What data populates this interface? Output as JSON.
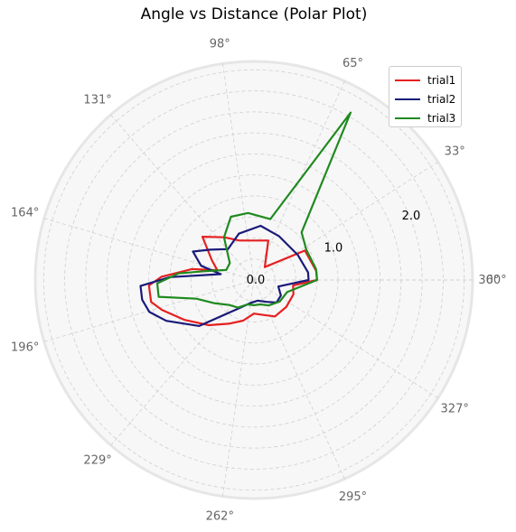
{
  "chart_data": {
    "type": "line",
    "subtype": "polar",
    "title": "Angle vs Distance (Polar Plot)",
    "angle_unit": "degrees",
    "angle_ticks": [
      "0°",
      "33°",
      "65°",
      "98°",
      "131°",
      "164°",
      "196°",
      "229°",
      "262°",
      "295°",
      "327°",
      "360°"
    ],
    "angle_tick_values": [
      0,
      32.7,
      65.5,
      98.2,
      130.9,
      163.6,
      196.4,
      229.1,
      261.8,
      294.5,
      327.3,
      360
    ],
    "radial_ticks": [
      "0.0",
      "1.0",
      "2.0"
    ],
    "radial_tick_values": [
      0,
      1,
      2
    ],
    "radial_gridlines": [
      0.25,
      0.5,
      0.75,
      1.0,
      1.25,
      1.5,
      1.75,
      2.0,
      2.25,
      2.5
    ],
    "rlim": [
      0,
      2.6
    ],
    "grid": true,
    "legend_position": "top-right",
    "series": [
      {
        "name": "trial1",
        "color": "#e62020",
        "points": [
          [
            0,
            0.75
          ],
          [
            8,
            0.75
          ],
          [
            30,
            0.7
          ],
          [
            50,
            0.2
          ],
          [
            70,
            0.5
          ],
          [
            90,
            0.47
          ],
          [
            110,
            0.5
          ],
          [
            125,
            0.62
          ],
          [
            140,
            0.8
          ],
          [
            155,
            0.55
          ],
          [
            165,
            0.45
          ],
          [
            170,
            0.75
          ],
          [
            178,
            1.1
          ],
          [
            183,
            1.25
          ],
          [
            192,
            1.25
          ],
          [
            198,
            1.15
          ],
          [
            210,
            0.95
          ],
          [
            225,
            0.76
          ],
          [
            240,
            0.6
          ],
          [
            255,
            0.5
          ],
          [
            270,
            0.4
          ],
          [
            285,
            0.43
          ],
          [
            300,
            0.5
          ],
          [
            320,
            0.5
          ],
          [
            340,
            0.5
          ],
          [
            352,
            0.47
          ],
          [
            360,
            0.75
          ]
        ]
      },
      {
        "name": "trial2",
        "color": "#1a1a7a",
        "points": [
          [
            0,
            0.65
          ],
          [
            8,
            0.65
          ],
          [
            30,
            0.6
          ],
          [
            60,
            0.6
          ],
          [
            83,
            0.65
          ],
          [
            108,
            0.58
          ],
          [
            130,
            0.48
          ],
          [
            145,
            0.63
          ],
          [
            155,
            0.8
          ],
          [
            165,
            0.65
          ],
          [
            170,
            0.4
          ],
          [
            178,
            1.0
          ],
          [
            183,
            1.35
          ],
          [
            190,
            1.35
          ],
          [
            197,
            1.3
          ],
          [
            205,
            1.15
          ],
          [
            220,
            0.85
          ],
          [
            240,
            0.4
          ],
          [
            260,
            0.28
          ],
          [
            280,
            0.25
          ],
          [
            300,
            0.3
          ],
          [
            315,
            0.38
          ],
          [
            330,
            0.37
          ],
          [
            345,
            0.3
          ],
          [
            360,
            0.65
          ]
        ]
      },
      {
        "name": "trial3",
        "color": "#1f8a1f",
        "points": [
          [
            0,
            0.75
          ],
          [
            10,
            0.75
          ],
          [
            30,
            0.72
          ],
          [
            45,
            0.8
          ],
          [
            60,
            2.3
          ],
          [
            75,
            0.75
          ],
          [
            95,
            0.8
          ],
          [
            110,
            0.8
          ],
          [
            125,
            0.62
          ],
          [
            145,
            0.35
          ],
          [
            160,
            0.35
          ],
          [
            170,
            0.6
          ],
          [
            175,
            0.9
          ],
          [
            182,
            1.15
          ],
          [
            190,
            1.15
          ],
          [
            198,
            0.72
          ],
          [
            210,
            0.55
          ],
          [
            225,
            0.42
          ],
          [
            240,
            0.38
          ],
          [
            255,
            0.3
          ],
          [
            270,
            0.3
          ],
          [
            285,
            0.3
          ],
          [
            300,
            0.35
          ],
          [
            320,
            0.4
          ],
          [
            340,
            0.42
          ],
          [
            360,
            0.75
          ]
        ]
      }
    ]
  }
}
